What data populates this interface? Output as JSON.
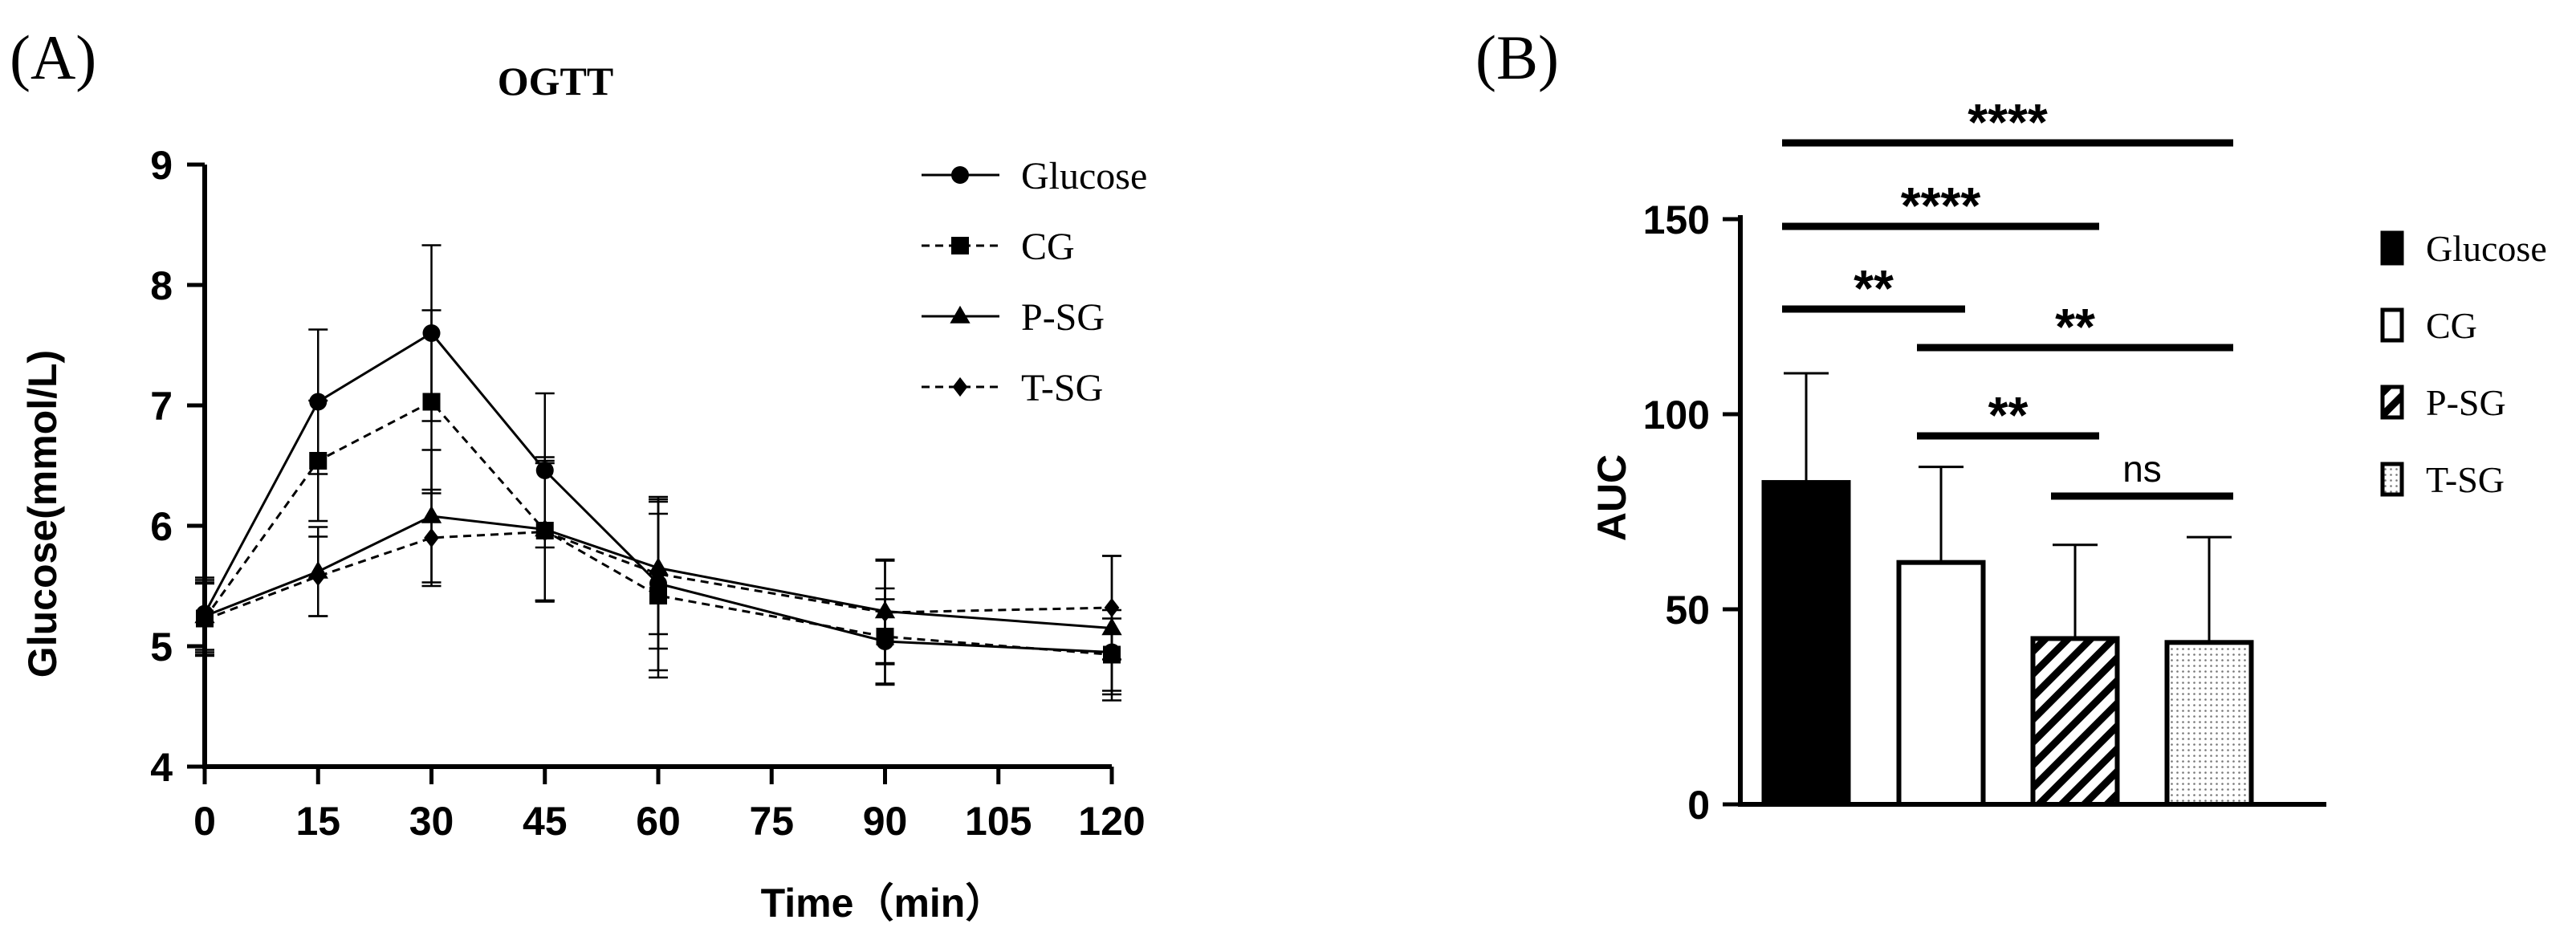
{
  "panel_a": {
    "label": "(A)"
  },
  "panel_b": {
    "label": "(B)"
  },
  "chart_data": [
    {
      "type": "line",
      "title": "OGTT",
      "xlabel": "Time（min）",
      "ylabel": "Glucose(mmol/L)",
      "x": [
        0,
        15,
        30,
        45,
        60,
        90,
        120
      ],
      "xticks": [
        "0",
        "15",
        "30",
        "45",
        "60",
        "75",
        "90",
        "105",
        "120"
      ],
      "xtick_values": [
        0,
        15,
        30,
        45,
        60,
        75,
        90,
        105,
        120
      ],
      "yticks": [
        "4",
        "5",
        "6",
        "7",
        "8",
        "9"
      ],
      "ylim": [
        4,
        9
      ],
      "xlim": [
        0,
        120
      ],
      "series": [
        {
          "name": "Glucose",
          "marker": "circle",
          "dash": "solid",
          "values": [
            5.27,
            7.03,
            7.6,
            6.46,
            5.52,
            5.04,
            4.95
          ],
          "errors": [
            0.3,
            0.6,
            0.73,
            0.64,
            0.72,
            0.35,
            0.35
          ]
        },
        {
          "name": "CG",
          "marker": "square",
          "dash": "dashed",
          "values": [
            5.23,
            6.54,
            7.03,
            5.96,
            5.42,
            5.08,
            4.93
          ],
          "errors": [
            0.3,
            0.5,
            0.76,
            0.58,
            0.68,
            0.4,
            0.3
          ]
        },
        {
          "name": "P-SG",
          "marker": "triangle",
          "dash": "solid",
          "values": [
            5.25,
            5.62,
            6.08,
            5.97,
            5.65,
            5.29,
            5.15
          ],
          "errors": [
            0.3,
            0.37,
            0.55,
            0.6,
            0.55,
            0.43,
            0.6
          ]
        },
        {
          "name": "T-SG",
          "marker": "diamond",
          "dash": "dashed",
          "values": [
            5.22,
            5.58,
            5.9,
            5.95,
            5.6,
            5.28,
            5.32
          ],
          "errors": [
            0.3,
            0.33,
            0.4,
            0.57,
            0.62,
            0.43,
            0.43
          ]
        }
      ]
    },
    {
      "type": "bar",
      "title": "",
      "xlabel": "",
      "ylabel": "AUC",
      "categories": [
        "Glucose",
        "CG",
        "P-SG",
        "T-SG"
      ],
      "values": [
        82.5,
        62.0,
        42.5,
        41.5
      ],
      "errors": [
        28.0,
        24.5,
        24.0,
        27.0
      ],
      "fills": [
        "solid",
        "hollow",
        "hatched",
        "dotted"
      ],
      "yticks": [
        "0",
        "50",
        "100",
        "150"
      ],
      "ylim": [
        0,
        150
      ],
      "significance": [
        {
          "from": "Glucose",
          "to": "T-SG",
          "label": "****"
        },
        {
          "from": "Glucose",
          "to": "P-SG",
          "label": "****"
        },
        {
          "from": "Glucose",
          "to": "CG",
          "label": "**"
        },
        {
          "from": "CG",
          "to": "T-SG",
          "label": "**"
        },
        {
          "from": "CG",
          "to": "P-SG",
          "label": "**"
        },
        {
          "from": "P-SG",
          "to": "T-SG",
          "label": "ns"
        }
      ],
      "colors": {
        "ink": "#000000",
        "white": "#ffffff"
      }
    }
  ]
}
